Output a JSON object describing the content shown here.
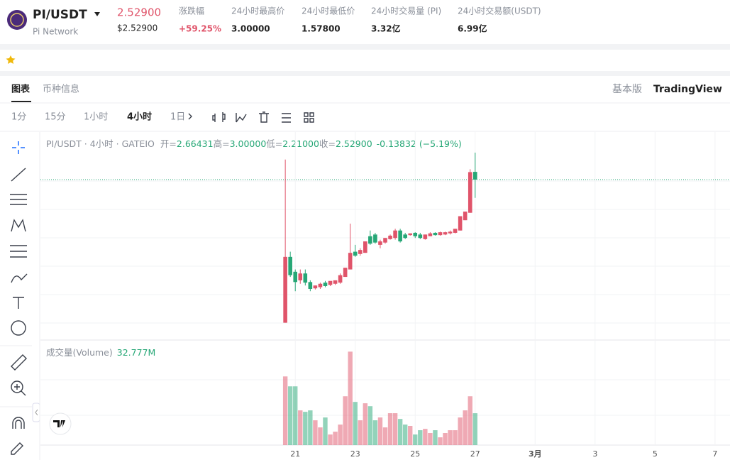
{
  "header": {
    "symbol": "PI/USDT",
    "name": "Pi Network",
    "price": "2.52900",
    "price_usd": "$2.52900",
    "stats": [
      {
        "label": "涨跌幅",
        "value": "+59.25%"
      },
      {
        "label": "24小时最高价",
        "value": "3.00000"
      },
      {
        "label": "24小时最低价",
        "value": "1.57800"
      },
      {
        "label": "24小时交易量 (PI)",
        "value": "3.32亿"
      },
      {
        "label": "24小时交易额(USDT)",
        "value": "6.99亿"
      }
    ]
  },
  "tabs": [
    "图表",
    "币种信息"
  ],
  "versions": [
    "基本版",
    "TradingView"
  ],
  "intervals": [
    "1分",
    "15分",
    "1小时",
    "4小时",
    "1日"
  ],
  "active_interval": 3,
  "chart_data": [
    {
      "type": "candlestick",
      "title": "PI/USDT · 4小时 · GATEIO",
      "ohlc_legend": [
        {
          "label": "开=",
          "value": "2.66431"
        },
        {
          "label": "高=",
          "value": "3.00000"
        },
        {
          "label": "低=",
          "value": "2.21000"
        },
        {
          "label": "收=",
          "value": "2.52900"
        }
      ],
      "change": "-0.13832 (−5.19%)",
      "x": [
        0,
        1,
        2,
        3,
        4,
        5,
        6,
        7,
        8,
        9,
        10,
        11,
        12,
        13,
        14,
        15,
        16,
        17,
        18,
        19,
        20,
        21,
        22,
        23,
        24,
        25,
        26,
        27,
        28,
        29,
        30,
        31,
        32,
        33,
        34,
        35,
        36,
        37,
        38
      ],
      "open": [
        0.03,
        1.18,
        0.92,
        0.77,
        0.89,
        0.74,
        0.63,
        0.65,
        0.73,
        0.69,
        0.71,
        0.73,
        0.83,
        0.96,
        1.27,
        1.23,
        1.25,
        1.54,
        1.57,
        1.39,
        1.43,
        1.49,
        1.51,
        1.64,
        1.57,
        1.56,
        1.6,
        1.57,
        1.49,
        1.54,
        1.6,
        1.56,
        1.57,
        1.59,
        1.6,
        1.64,
        1.82,
        1.95,
        2.66431
      ],
      "high": [
        2.88,
        1.27,
        0.96,
        0.96,
        0.96,
        0.77,
        0.68,
        0.73,
        0.76,
        0.74,
        0.77,
        0.89,
        0.99,
        1.76,
        1.39,
        1.33,
        1.45,
        1.64,
        1.6,
        1.48,
        1.51,
        1.57,
        1.67,
        1.67,
        1.6,
        1.59,
        1.61,
        1.6,
        1.57,
        1.61,
        1.61,
        1.62,
        1.62,
        1.64,
        1.67,
        1.89,
        1.97,
        2.71,
        3.0
      ],
      "low": [
        0.03,
        0.83,
        0.58,
        0.71,
        0.68,
        0.58,
        0.61,
        0.62,
        0.65,
        0.67,
        0.69,
        0.71,
        0.83,
        0.96,
        1.18,
        1.2,
        1.25,
        1.39,
        1.41,
        1.33,
        1.41,
        1.48,
        1.48,
        1.43,
        1.49,
        1.55,
        1.51,
        1.49,
        1.48,
        1.54,
        1.55,
        1.55,
        1.56,
        1.57,
        1.59,
        1.64,
        1.82,
        1.95,
        2.21
      ],
      "close": [
        1.18,
        0.86,
        0.74,
        0.89,
        0.73,
        0.62,
        0.68,
        0.71,
        0.67,
        0.76,
        0.77,
        0.86,
        0.99,
        1.25,
        1.2,
        1.3,
        1.45,
        1.41,
        1.43,
        1.45,
        1.51,
        1.55,
        1.64,
        1.45,
        1.51,
        1.59,
        1.54,
        1.51,
        1.57,
        1.59,
        1.56,
        1.61,
        1.61,
        1.62,
        1.67,
        1.89,
        1.97,
        2.66,
        2.529
      ],
      "price_line": 2.529,
      "xlim": [
        -49,
        89
      ],
      "ylim": [
        -0.26,
        3.31
      ],
      "xticks": [
        {
          "value": 2,
          "label": "21"
        },
        {
          "value": 14,
          "label": "23"
        },
        {
          "value": 26,
          "label": "25"
        },
        {
          "value": 38,
          "label": "27"
        },
        {
          "value": 50,
          "label": "3月"
        },
        {
          "value": 62,
          "label": "3"
        },
        {
          "value": 74,
          "label": "5"
        },
        {
          "value": 86,
          "label": "7"
        }
      ],
      "up_color": "#e0546a",
      "down_color": "#26a776",
      "grid": true
    },
    {
      "type": "bar",
      "title": "成交量(Volume)",
      "value_label": "32.777M",
      "values": [
        70.6,
        60.4,
        60.4,
        35.7,
        34.2,
        35.7,
        25.5,
        18.2,
        28.4,
        10.9,
        13.8,
        21.1,
        50.2,
        96.1,
        44.4,
        25.5,
        43.0,
        40.0,
        25.5,
        28.4,
        18.2,
        32.8,
        32.8,
        26.9,
        21.1,
        19.7,
        10.9,
        15.3,
        16.7,
        12.4,
        15.3,
        8.0,
        12.4,
        15.3,
        15.3,
        28.4,
        35.7,
        50.2,
        32.777
      ],
      "ylim": [
        0,
        100
      ]
    }
  ]
}
